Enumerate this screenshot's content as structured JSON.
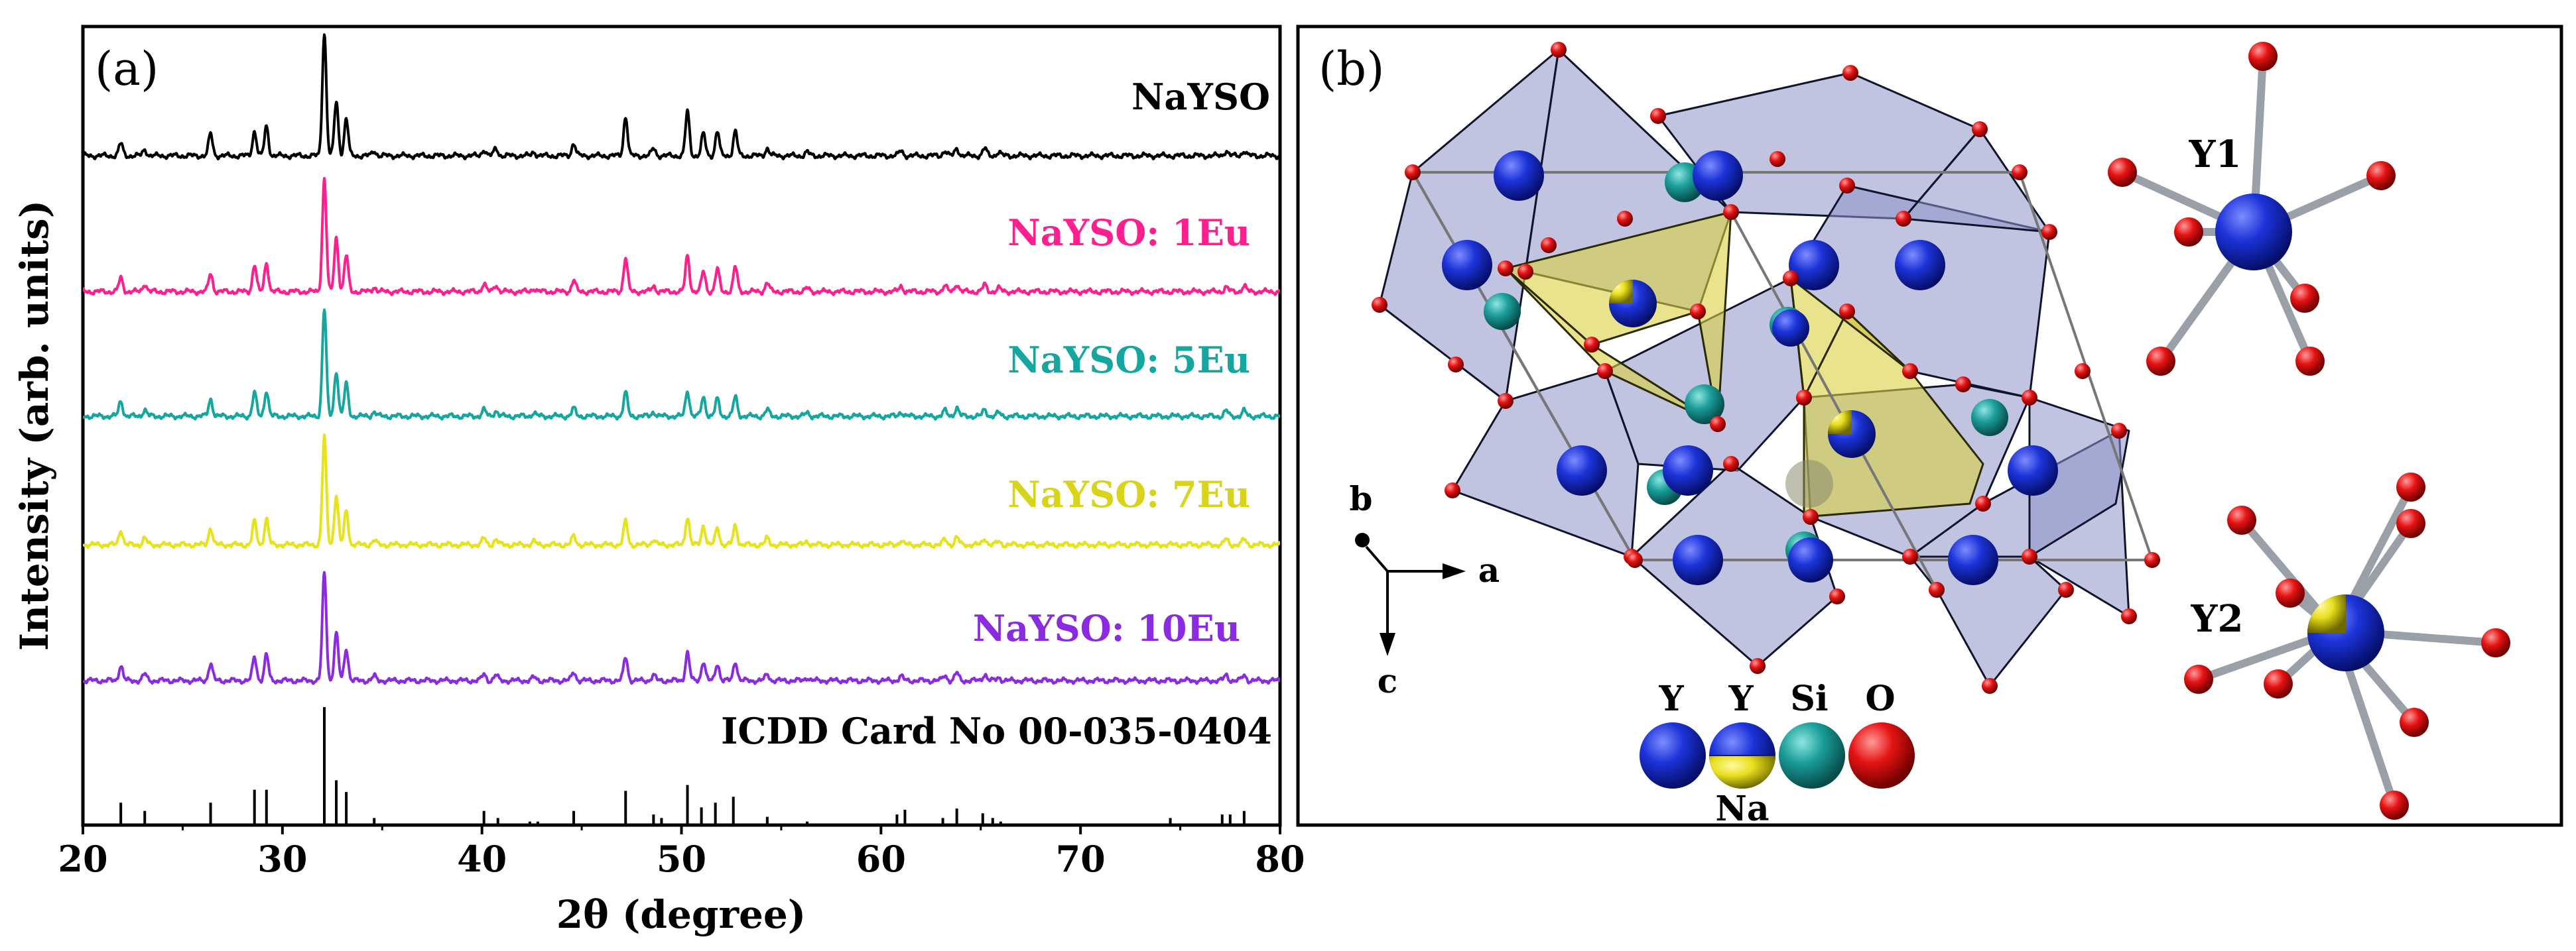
{
  "panel_a": {
    "label": "(a)",
    "chart_data": {
      "type": "line",
      "title": "",
      "xlabel": "2θ (degree)",
      "ylabel": "Intensity (arb. units)",
      "xlim": [
        20,
        80
      ],
      "xticks": [
        20,
        30,
        40,
        50,
        60,
        70,
        80
      ],
      "grid": false,
      "peaks_2theta": [
        21.9,
        23.1,
        26.4,
        28.6,
        29.2,
        32.1,
        32.7,
        33.2,
        34.6,
        40.1,
        40.7,
        42.6,
        44.6,
        47.2,
        48.6,
        50.3,
        51.1,
        51.8,
        52.7,
        54.3,
        56.3,
        61.0,
        63.2,
        63.8,
        65.2,
        65.9,
        77.3,
        78.2
      ],
      "series": [
        {
          "name": "NaYSO",
          "color": "#000000",
          "intensities": [
            0.1,
            0.05,
            0.18,
            0.2,
            0.24,
            1.0,
            0.44,
            0.3,
            0.04,
            0.05,
            0.06,
            0.03,
            0.1,
            0.32,
            0.06,
            0.36,
            0.18,
            0.2,
            0.2,
            0.06,
            0.03,
            0.04,
            0.04,
            0.06,
            0.06,
            0.03,
            0.04,
            0.04
          ]
        },
        {
          "name": "NaYSO: 1Eu",
          "color": "#ff1f8e",
          "intensities": [
            0.12,
            0.07,
            0.16,
            0.24,
            0.26,
            1.0,
            0.48,
            0.32,
            0.04,
            0.07,
            0.06,
            0.03,
            0.1,
            0.3,
            0.05,
            0.32,
            0.18,
            0.2,
            0.22,
            0.08,
            0.03,
            0.05,
            0.05,
            0.07,
            0.06,
            0.03,
            0.04,
            0.05
          ]
        },
        {
          "name": "NaYSO: 5Eu",
          "color": "#16a6a0",
          "intensities": [
            0.14,
            0.06,
            0.16,
            0.22,
            0.24,
            1.0,
            0.42,
            0.3,
            0.04,
            0.06,
            0.05,
            0.03,
            0.07,
            0.22,
            0.04,
            0.24,
            0.18,
            0.16,
            0.18,
            0.06,
            0.03,
            0.04,
            0.05,
            0.08,
            0.06,
            0.03,
            0.05,
            0.05
          ]
        },
        {
          "name": "NaYSO: 7Eu",
          "color": "#e6e21b",
          "intensities": [
            0.14,
            0.06,
            0.16,
            0.22,
            0.24,
            1.0,
            0.46,
            0.32,
            0.04,
            0.06,
            0.05,
            0.03,
            0.08,
            0.22,
            0.05,
            0.26,
            0.18,
            0.16,
            0.18,
            0.06,
            0.03,
            0.04,
            0.05,
            0.07,
            0.06,
            0.03,
            0.05,
            0.05
          ]
        },
        {
          "name": "NaYSO: 10Eu",
          "color": "#8a2be2",
          "intensities": [
            0.14,
            0.06,
            0.16,
            0.22,
            0.24,
            1.0,
            0.44,
            0.3,
            0.04,
            0.06,
            0.05,
            0.03,
            0.08,
            0.22,
            0.05,
            0.26,
            0.18,
            0.16,
            0.18,
            0.06,
            0.03,
            0.04,
            0.05,
            0.07,
            0.06,
            0.03,
            0.05,
            0.05
          ]
        }
      ],
      "reference": {
        "name": "ICDD Card No 00-035-0404",
        "color": "#000000",
        "lines": [
          {
            "x": 21.9,
            "h": 0.19
          },
          {
            "x": 23.1,
            "h": 0.12
          },
          {
            "x": 26.4,
            "h": 0.19
          },
          {
            "x": 28.6,
            "h": 0.3
          },
          {
            "x": 29.2,
            "h": 0.3
          },
          {
            "x": 32.1,
            "h": 1.0
          },
          {
            "x": 32.7,
            "h": 0.38
          },
          {
            "x": 33.2,
            "h": 0.28
          },
          {
            "x": 34.6,
            "h": 0.06
          },
          {
            "x": 40.1,
            "h": 0.12
          },
          {
            "x": 40.8,
            "h": 0.06
          },
          {
            "x": 42.4,
            "h": 0.03
          },
          {
            "x": 42.8,
            "h": 0.03
          },
          {
            "x": 44.6,
            "h": 0.12
          },
          {
            "x": 47.2,
            "h": 0.29
          },
          {
            "x": 48.6,
            "h": 0.09
          },
          {
            "x": 49.0,
            "h": 0.06
          },
          {
            "x": 50.3,
            "h": 0.34
          },
          {
            "x": 51.0,
            "h": 0.15
          },
          {
            "x": 51.7,
            "h": 0.19
          },
          {
            "x": 52.6,
            "h": 0.24
          },
          {
            "x": 54.3,
            "h": 0.07
          },
          {
            "x": 56.3,
            "h": 0.03
          },
          {
            "x": 60.8,
            "h": 0.09
          },
          {
            "x": 61.2,
            "h": 0.13
          },
          {
            "x": 63.1,
            "h": 0.06
          },
          {
            "x": 63.8,
            "h": 0.14
          },
          {
            "x": 65.1,
            "h": 0.1
          },
          {
            "x": 65.6,
            "h": 0.06
          },
          {
            "x": 66.0,
            "h": 0.03
          },
          {
            "x": 74.5,
            "h": 0.06
          },
          {
            "x": 77.1,
            "h": 0.09
          },
          {
            "x": 77.5,
            "h": 0.09
          },
          {
            "x": 78.2,
            "h": 0.12
          }
        ]
      }
    }
  },
  "panel_b": {
    "label": "(b)",
    "axes": {
      "b": "b",
      "a": "a",
      "c": "c"
    },
    "site_labels": {
      "y1": "Y1",
      "y2": "Y2"
    },
    "legend": {
      "y": "Y",
      "y_na_top": "Y",
      "y_na_bottom": "Na",
      "si": "Si",
      "o": "O"
    },
    "colors": {
      "y_atom": "#1630c8",
      "na_share": "#e8e020",
      "si_atom": "#1a9c9a",
      "o_atom": "#e01010",
      "polyhedron_blue": "#8c94c8",
      "polyhedron_yellow": "#d8d040"
    }
  }
}
